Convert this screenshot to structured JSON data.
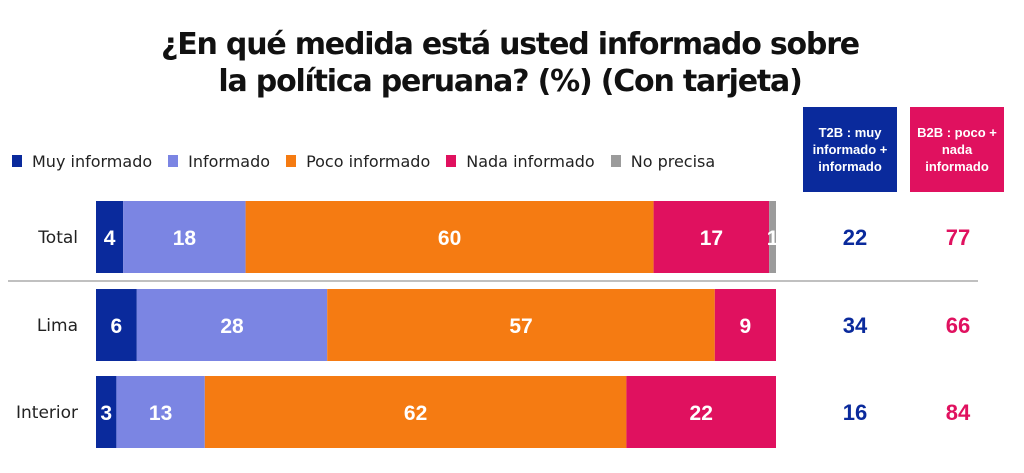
{
  "title": {
    "line1": "¿En qué medida está usted informado sobre",
    "line2": "la política peruana? (%) (Con tarjeta)"
  },
  "legend": [
    {
      "label": "Muy informado",
      "color": "#0a2a9c"
    },
    {
      "label": "Informado",
      "color": "#7b85e3"
    },
    {
      "label": "Poco informado",
      "color": "#f57b12"
    },
    {
      "label": "Nada informado",
      "color": "#e0115f"
    },
    {
      "label": "No precisa",
      "color": "#9b9b9b"
    }
  ],
  "summary_headers": {
    "t2b": "T2B : muy informado + informado",
    "b2b": "B2B : poco + nada informado",
    "t2b_color": "#0a2a9c",
    "b2b_color": "#e0115f"
  },
  "chart_data": {
    "type": "bar",
    "orientation": "horizontal-stacked",
    "title": "¿En qué medida está usted informado sobre la política peruana? (%) (Con tarjeta)",
    "categories": [
      "Total",
      "Lima",
      "Interior"
    ],
    "series": [
      {
        "name": "Muy informado",
        "color": "#0a2a9c",
        "values": [
          4,
          6,
          3
        ]
      },
      {
        "name": "Informado",
        "color": "#7b85e3",
        "values": [
          18,
          28,
          13
        ]
      },
      {
        "name": "Poco informado",
        "color": "#f57b12",
        "values": [
          60,
          57,
          62
        ]
      },
      {
        "name": "Nada informado",
        "color": "#e0115f",
        "values": [
          17,
          9,
          22
        ]
      },
      {
        "name": "No precisa",
        "color": "#9b9b9b",
        "values": [
          1,
          0,
          0
        ]
      }
    ],
    "t2b": [
      22,
      34,
      16
    ],
    "b2b": [
      77,
      66,
      84
    ],
    "xlim": [
      0,
      100
    ],
    "xlabel": "",
    "ylabel": ""
  }
}
